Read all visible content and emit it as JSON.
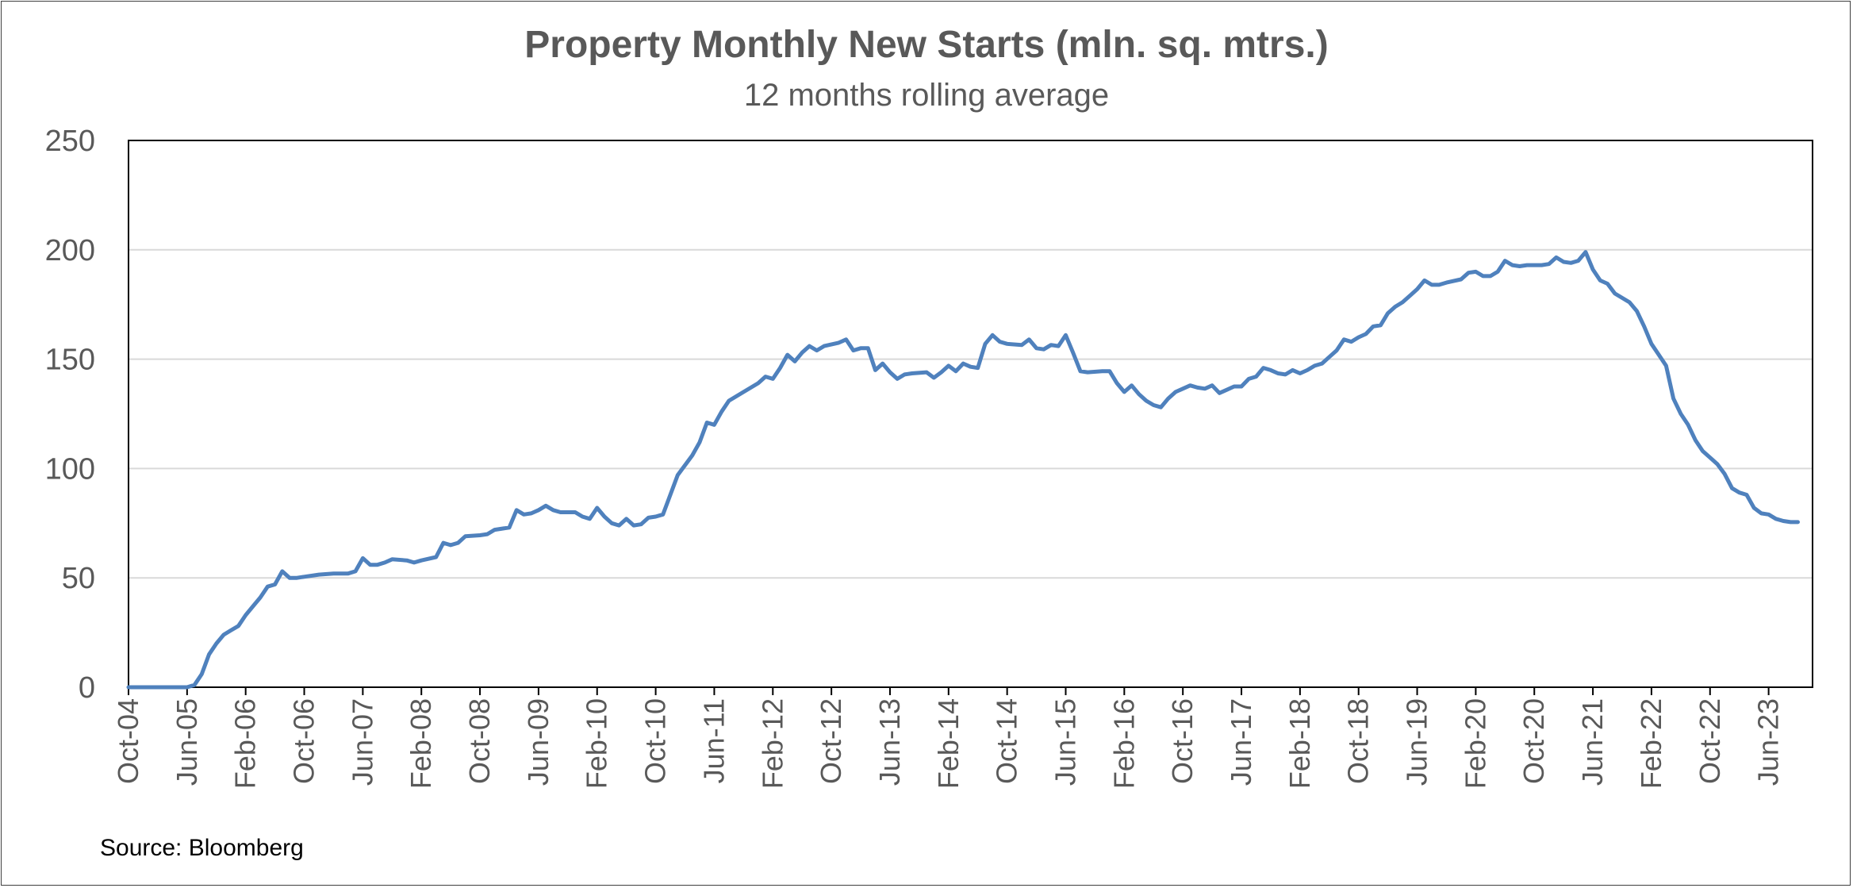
{
  "chart_data": {
    "type": "line",
    "title": "Property Monthly New Starts (mln. sq. mtrs.)",
    "subtitle": "12 months rolling average",
    "xlabel": "",
    "ylabel": "",
    "ylim": [
      0,
      250
    ],
    "yticks": [
      0,
      50,
      100,
      150,
      200,
      250
    ],
    "x_tick_labels": [
      "Oct-04",
      "Jun-05",
      "Feb-06",
      "Oct-06",
      "Jun-07",
      "Feb-08",
      "Oct-08",
      "Jun-09",
      "Feb-10",
      "Oct-10",
      "Jun-11",
      "Feb-12",
      "Oct-12",
      "Jun-13",
      "Feb-14",
      "Oct-14",
      "Jun-15",
      "Feb-16",
      "Oct-16",
      "Jun-17",
      "Feb-18",
      "Oct-18",
      "Jun-19",
      "Feb-20",
      "Oct-20",
      "Jun-21",
      "Feb-22",
      "Oct-22",
      "Jun-23"
    ],
    "x_start": "Oct-04",
    "x_end": "Dec-23",
    "grid": "horizontal",
    "line_color": "#4f81bd",
    "series": [
      {
        "points": [
          [
            "Oct-04",
            0
          ],
          [
            "Jun-05",
            0
          ],
          [
            "Jul-05",
            1
          ],
          [
            "Aug-05",
            6
          ],
          [
            "Sep-05",
            15
          ],
          [
            "Oct-05",
            20
          ],
          [
            "Nov-05",
            24
          ],
          [
            "Dec-05",
            26
          ],
          [
            "Jan-06",
            28
          ],
          [
            "Feb-06",
            33
          ],
          [
            "Mar-06",
            37
          ],
          [
            "Apr-06",
            41
          ],
          [
            "May-06",
            46
          ],
          [
            "Jun-06",
            47
          ],
          [
            "Jul-06",
            53
          ],
          [
            "Aug-06",
            50
          ],
          [
            "Sep-06",
            50
          ],
          [
            "Oct-06",
            50.5
          ],
          [
            "Dec-06",
            51.5
          ],
          [
            "Feb-07",
            52
          ],
          [
            "Apr-07",
            52
          ],
          [
            "May-07",
            53
          ],
          [
            "Jun-07",
            59
          ],
          [
            "Jul-07",
            56
          ],
          [
            "Aug-07",
            56
          ],
          [
            "Sep-07",
            57
          ],
          [
            "Oct-07",
            58.5
          ],
          [
            "Dec-07",
            58
          ],
          [
            "Jan-08",
            57
          ],
          [
            "Feb-08",
            58
          ],
          [
            "Apr-08",
            59.5
          ],
          [
            "May-08",
            66
          ],
          [
            "Jun-08",
            65
          ],
          [
            "Jul-08",
            66
          ],
          [
            "Aug-08",
            69
          ],
          [
            "Oct-08",
            69.5
          ],
          [
            "Nov-08",
            70
          ],
          [
            "Dec-08",
            72
          ],
          [
            "Feb-09",
            73
          ],
          [
            "Mar-09",
            81
          ],
          [
            "Apr-09",
            79
          ],
          [
            "May-09",
            79.5
          ],
          [
            "Jun-09",
            81
          ],
          [
            "Jul-09",
            83
          ],
          [
            "Aug-09",
            81
          ],
          [
            "Sep-09",
            80
          ],
          [
            "Nov-09",
            80
          ],
          [
            "Dec-09",
            78
          ],
          [
            "Jan-10",
            77
          ],
          [
            "Feb-10",
            82
          ],
          [
            "Mar-10",
            78
          ],
          [
            "Apr-10",
            75
          ],
          [
            "May-10",
            74
          ],
          [
            "Jun-10",
            77
          ],
          [
            "Jul-10",
            74
          ],
          [
            "Aug-10",
            74.5
          ],
          [
            "Sep-10",
            77.5
          ],
          [
            "Oct-10",
            78
          ],
          [
            "Nov-10",
            79
          ],
          [
            "Jan-11",
            97
          ],
          [
            "Mar-11",
            106
          ],
          [
            "Apr-11",
            112
          ],
          [
            "May-11",
            121
          ],
          [
            "Jun-11",
            120
          ],
          [
            "Jul-11",
            126
          ],
          [
            "Aug-11",
            131
          ],
          [
            "Oct-11",
            135
          ],
          [
            "Nov-11",
            137
          ],
          [
            "Dec-11",
            139
          ],
          [
            "Jan-12",
            142
          ],
          [
            "Feb-12",
            141
          ],
          [
            "Mar-12",
            146
          ],
          [
            "Apr-12",
            152
          ],
          [
            "May-12",
            149
          ],
          [
            "Jun-12",
            153
          ],
          [
            "Jul-12",
            156
          ],
          [
            "Aug-12",
            154
          ],
          [
            "Sep-12",
            156
          ],
          [
            "Nov-12",
            157.5
          ],
          [
            "Dec-12",
            159
          ],
          [
            "Jan-13",
            154
          ],
          [
            "Feb-13",
            155
          ],
          [
            "Mar-13",
            155
          ],
          [
            "Apr-13",
            145
          ],
          [
            "May-13",
            148
          ],
          [
            "Jun-13",
            144
          ],
          [
            "Jul-13",
            141
          ],
          [
            "Aug-13",
            143
          ],
          [
            "Sep-13",
            143.5
          ],
          [
            "Nov-13",
            144
          ],
          [
            "Dec-13",
            141.5
          ],
          [
            "Jan-14",
            144
          ],
          [
            "Feb-14",
            147
          ],
          [
            "Mar-14",
            144.5
          ],
          [
            "Apr-14",
            148
          ],
          [
            "May-14",
            146.5
          ],
          [
            "Jun-14",
            146
          ],
          [
            "Jul-14",
            157
          ],
          [
            "Aug-14",
            161
          ],
          [
            "Sep-14",
            158
          ],
          [
            "Oct-14",
            157
          ],
          [
            "Dec-14",
            156.5
          ],
          [
            "Jan-15",
            159
          ],
          [
            "Feb-15",
            155
          ],
          [
            "Mar-15",
            154.5
          ],
          [
            "Apr-15",
            156.5
          ],
          [
            "May-15",
            156
          ],
          [
            "Jun-15",
            161
          ],
          [
            "Jul-15",
            153
          ],
          [
            "Aug-15",
            144.5
          ],
          [
            "Sep-15",
            144
          ],
          [
            "Nov-15",
            144.5
          ],
          [
            "Dec-15",
            144.5
          ],
          [
            "Jan-16",
            139
          ],
          [
            "Feb-16",
            135
          ],
          [
            "Mar-16",
            138
          ],
          [
            "Apr-16",
            134
          ],
          [
            "May-16",
            131
          ],
          [
            "Jun-16",
            129
          ],
          [
            "Jul-16",
            128
          ],
          [
            "Aug-16",
            132
          ],
          [
            "Sep-16",
            135
          ],
          [
            "Oct-16",
            136.5
          ],
          [
            "Nov-16",
            138
          ],
          [
            "Dec-16",
            137
          ],
          [
            "Jan-17",
            136.5
          ],
          [
            "Feb-17",
            138
          ],
          [
            "Mar-17",
            134.5
          ],
          [
            "Apr-17",
            136
          ],
          [
            "May-17",
            137.5
          ],
          [
            "Jun-17",
            137.5
          ],
          [
            "Jul-17",
            141
          ],
          [
            "Aug-17",
            142
          ],
          [
            "Sep-17",
            146
          ],
          [
            "Oct-17",
            145
          ],
          [
            "Nov-17",
            143.5
          ],
          [
            "Dec-17",
            143
          ],
          [
            "Jan-18",
            145
          ],
          [
            "Feb-18",
            143.5
          ],
          [
            "Mar-18",
            145
          ],
          [
            "Apr-18",
            147
          ],
          [
            "May-18",
            148
          ],
          [
            "Jun-18",
            151
          ],
          [
            "Jul-18",
            154
          ],
          [
            "Aug-18",
            159
          ],
          [
            "Sep-18",
            158
          ],
          [
            "Oct-18",
            160
          ],
          [
            "Nov-18",
            161.5
          ],
          [
            "Dec-18",
            165
          ],
          [
            "Jan-19",
            165.5
          ],
          [
            "Feb-19",
            171
          ],
          [
            "Mar-19",
            174
          ],
          [
            "Apr-19",
            176
          ],
          [
            "May-19",
            179
          ],
          [
            "Jun-19",
            182
          ],
          [
            "Jul-19",
            186
          ],
          [
            "Aug-19",
            184
          ],
          [
            "Sep-19",
            184
          ],
          [
            "Oct-19",
            185
          ],
          [
            "Dec-19",
            186.5
          ],
          [
            "Jan-20",
            189.5
          ],
          [
            "Feb-20",
            190
          ],
          [
            "Mar-20",
            188
          ],
          [
            "Apr-20",
            188
          ],
          [
            "May-20",
            190
          ],
          [
            "Jun-20",
            195
          ],
          [
            "Jul-20",
            193
          ],
          [
            "Aug-20",
            192.5
          ],
          [
            "Sep-20",
            193
          ],
          [
            "Nov-20",
            193
          ],
          [
            "Dec-20",
            193.5
          ],
          [
            "Jan-21",
            196.5
          ],
          [
            "Feb-21",
            194.5
          ],
          [
            "Mar-21",
            194
          ],
          [
            "Apr-21",
            195
          ],
          [
            "May-21",
            199
          ],
          [
            "Jun-21",
            191
          ],
          [
            "Jul-21",
            186
          ],
          [
            "Aug-21",
            184.5
          ],
          [
            "Sep-21",
            180
          ],
          [
            "Oct-21",
            178
          ],
          [
            "Nov-21",
            176
          ],
          [
            "Dec-21",
            172
          ],
          [
            "Jan-22",
            165
          ],
          [
            "Feb-22",
            157
          ],
          [
            "Mar-22",
            152
          ],
          [
            "Apr-22",
            147
          ],
          [
            "May-22",
            132
          ],
          [
            "Jun-22",
            125
          ],
          [
            "Jul-22",
            120
          ],
          [
            "Aug-22",
            113
          ],
          [
            "Sep-22",
            108
          ],
          [
            "Oct-22",
            105
          ],
          [
            "Nov-22",
            102
          ],
          [
            "Dec-22",
            97.5
          ],
          [
            "Jan-23",
            91
          ],
          [
            "Feb-23",
            89
          ],
          [
            "Mar-23",
            88
          ],
          [
            "Apr-23",
            82
          ],
          [
            "May-23",
            79.5
          ],
          [
            "Jun-23",
            79
          ],
          [
            "Jul-23",
            77
          ],
          [
            "Aug-23",
            76
          ],
          [
            "Sep-23",
            75.5
          ],
          [
            "Oct-23",
            75.5
          ]
        ]
      }
    ]
  },
  "source": "Source: Bloomberg"
}
